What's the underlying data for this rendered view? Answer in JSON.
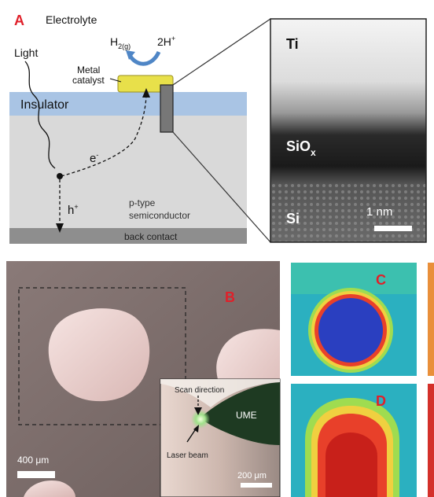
{
  "panel_a": {
    "letter": "A",
    "electrolyte": "Electrolyte",
    "h2_main": "H",
    "h2_sub": "2(g)",
    "proton": "2H",
    "proton_sup": "+",
    "light": "Light",
    "catalyst_line1": "Metal",
    "catalyst_line2": "catalyst",
    "insulator": "Insulator",
    "electron": "e",
    "electron_sup": "-",
    "hole": "h",
    "hole_sup": "+",
    "semiconductor_line1": "p-type",
    "semiconductor_line2": "semiconductor",
    "back_contact": "back contact"
  },
  "tem": {
    "ti": "Ti",
    "siox_main": "SiO",
    "siox_sub": "x",
    "si": "Si",
    "scale": "1 nm"
  },
  "panel_b": {
    "letter": "B",
    "scale": "400 μm",
    "inset": {
      "scan_direction": "Scan direction",
      "ume": "UME",
      "laser_beam": "Laser beam",
      "scale": "200 μm"
    }
  },
  "panel_c": {
    "letter": "C"
  },
  "panel_d": {
    "letter": "D"
  },
  "colors": {
    "letter_red": "#e0202a",
    "insulator": "#a9c4e4",
    "semiconductor": "#d9d9d9",
    "back_contact": "#8e8e8e",
    "catalyst": "#e8e04a",
    "arrow_blue": "#4f86c6",
    "heatmap_background": "#2bb0c0",
    "heatmap_spot": "#2a3fc0"
  }
}
